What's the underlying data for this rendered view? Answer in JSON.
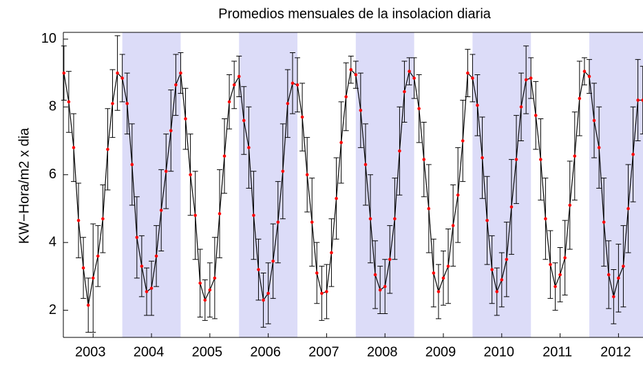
{
  "chart_data": {
    "type": "errorbar-line",
    "title": "Promedios mensuales de la insolacion diaria",
    "y_label": "KW−Hora/m2 x dia",
    "x": [
      2003,
      2003.083,
      2003.167,
      2003.25,
      2003.333,
      2003.417,
      2003.5,
      2003.583,
      2003.667,
      2003.75,
      2003.833,
      2003.917,
      2004,
      2004.083,
      2004.167,
      2004.25,
      2004.333,
      2004.417,
      2004.5,
      2004.583,
      2004.667,
      2004.75,
      2004.833,
      2004.917,
      2005,
      2005.083,
      2005.167,
      2005.25,
      2005.333,
      2005.417,
      2005.5,
      2005.583,
      2005.667,
      2005.75,
      2005.833,
      2005.917,
      2006,
      2006.083,
      2006.167,
      2006.25,
      2006.333,
      2006.417,
      2006.5,
      2006.583,
      2006.667,
      2006.75,
      2006.833,
      2006.917,
      2007,
      2007.083,
      2007.167,
      2007.25,
      2007.333,
      2007.417,
      2007.5,
      2007.583,
      2007.667,
      2007.75,
      2007.833,
      2007.917,
      2008,
      2008.083,
      2008.167,
      2008.25,
      2008.333,
      2008.417,
      2008.5,
      2008.583,
      2008.667,
      2008.75,
      2008.833,
      2008.917,
      2009,
      2009.083,
      2009.167,
      2009.25,
      2009.333,
      2009.417,
      2009.5,
      2009.583,
      2009.667,
      2009.75,
      2009.833,
      2009.917,
      2010,
      2010.083,
      2010.167,
      2010.25,
      2010.333,
      2010.417,
      2010.5,
      2010.583,
      2010.667,
      2010.75,
      2010.833,
      2010.917,
      2011,
      2011.083,
      2011.167,
      2011.25,
      2011.333,
      2011.417,
      2011.5,
      2011.583,
      2011.667,
      2011.75,
      2011.833,
      2011.917,
      2012,
      2012.083,
      2012.167,
      2012.25,
      2012.333,
      2012.417,
      2012.5,
      2012.583,
      2012.667,
      2012.75,
      2012.833,
      2012.917
    ],
    "values": [
      9.0,
      8.15,
      6.8,
      4.65,
      3.25,
      2.15,
      2.95,
      3.6,
      4.7,
      6.75,
      8.1,
      9.0,
      8.85,
      8.1,
      6.3,
      4.15,
      3.3,
      2.55,
      2.65,
      3.6,
      4.95,
      6.1,
      7.3,
      8.65,
      9.0,
      7.65,
      6.0,
      4.8,
      2.8,
      2.3,
      2.6,
      2.95,
      4.85,
      6.55,
      8.15,
      8.65,
      8.9,
      7.6,
      6.8,
      4.8,
      3.2,
      2.3,
      2.5,
      3.45,
      4.6,
      6.1,
      8.1,
      8.7,
      8.65,
      7.7,
      6.0,
      4.6,
      3.1,
      2.5,
      2.55,
      3.7,
      5.3,
      6.95,
      8.3,
      9.1,
      8.95,
      7.9,
      6.3,
      4.7,
      3.05,
      2.6,
      2.7,
      3.5,
      4.7,
      6.7,
      8.45,
      9.05,
      8.85,
      7.95,
      6.45,
      5.0,
      3.1,
      2.55,
      2.95,
      3.3,
      4.5,
      5.4,
      7.0,
      9.0,
      8.85,
      8.05,
      6.5,
      4.65,
      3.2,
      2.55,
      2.9,
      3.5,
      5.05,
      6.45,
      8.0,
      8.8,
      8.85,
      7.75,
      6.45,
      4.7,
      3.35,
      2.7,
      3.05,
      3.55,
      5.1,
      6.55,
      8.25,
      9.05,
      8.9,
      7.6,
      6.8,
      4.6,
      3.05,
      2.4,
      2.95,
      3.3,
      5.0,
      6.6,
      8.2,
      8.2
    ],
    "errors": [
      0.8,
      0.9,
      1.0,
      1.1,
      0.9,
      0.8,
      1.6,
      0.9,
      1.0,
      1.2,
      1.0,
      1.1,
      0.7,
      0.9,
      1.2,
      1.2,
      0.9,
      0.7,
      0.8,
      0.9,
      1.2,
      1.1,
      1.2,
      0.9,
      0.6,
      0.9,
      1.2,
      1.3,
      1.0,
      0.6,
      0.8,
      1.2,
      1.3,
      1.1,
      0.8,
      0.7,
      0.6,
      1.0,
      1.2,
      1.3,
      0.9,
      0.8,
      0.9,
      1.1,
      1.2,
      1.4,
      1.0,
      0.9,
      0.8,
      1.0,
      1.1,
      1.3,
      0.9,
      0.8,
      0.8,
      1.0,
      1.2,
      1.2,
      1.0,
      0.4,
      0.4,
      1.1,
      1.2,
      1.3,
      1.0,
      0.7,
      0.8,
      1.0,
      1.2,
      1.3,
      0.9,
      0.4,
      0.6,
      1.0,
      1.1,
      1.3,
      1.0,
      0.8,
      0.8,
      1.1,
      1.2,
      1.4,
      1.2,
      0.7,
      0.7,
      0.9,
      1.2,
      1.3,
      1.0,
      0.7,
      0.8,
      1.1,
      1.4,
      1.3,
      1.0,
      1.0,
      0.6,
      1.0,
      1.2,
      1.2,
      1.0,
      0.7,
      0.8,
      1.1,
      1.3,
      1.3,
      1.1,
      0.4,
      0.5,
      1.1,
      1.2,
      1.3,
      1.0,
      0.8,
      1.0,
      1.2,
      1.3,
      1.4,
      1.2,
      1.0
    ],
    "line_color": "#000000",
    "marker_color": "#ff0000",
    "error_color": "#000000",
    "shaded_spans": [
      [
        2004,
        2005
      ],
      [
        2006,
        2007
      ],
      [
        2008,
        2009
      ],
      [
        2010,
        2011
      ],
      [
        2012,
        2013
      ]
    ],
    "shade_color": "#dcdcf8",
    "xlim": [
      2002.99,
      2012.92
    ],
    "xticks": [
      {
        "value": 2003.5,
        "label": "2003"
      },
      {
        "value": 2004.5,
        "label": "2004"
      },
      {
        "value": 2005.5,
        "label": "2005"
      },
      {
        "value": 2006.5,
        "label": "2006"
      },
      {
        "value": 2007.5,
        "label": "2007"
      },
      {
        "value": 2008.5,
        "label": "2008"
      },
      {
        "value": 2009.5,
        "label": "2009"
      },
      {
        "value": 2010.5,
        "label": "2010"
      },
      {
        "value": 2011.5,
        "label": "2011"
      },
      {
        "value": 2012.5,
        "label": "2012"
      }
    ],
    "ylim": [
      1.2,
      10.2
    ],
    "yticks": [
      2,
      4,
      6,
      8,
      10
    ]
  }
}
